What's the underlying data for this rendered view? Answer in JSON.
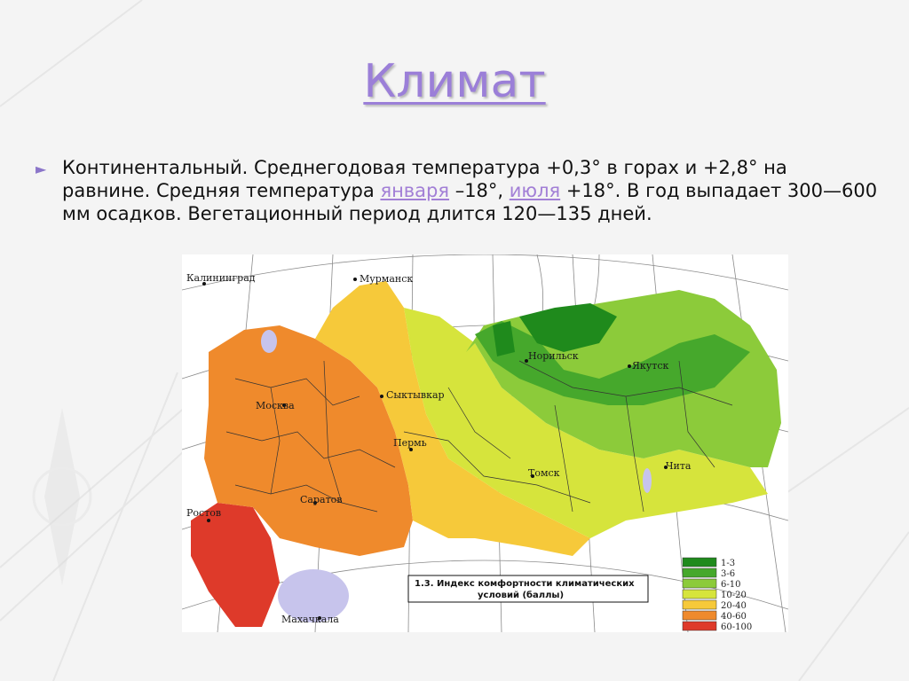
{
  "slide": {
    "title": "Климат",
    "bullet": {
      "t1": "Континентальный. Среднегодовая температура +0,3° в горах и +2,8° на равнине. Средняя температура ",
      "link1": "января",
      "t2": " –18°, ",
      "link2": "июля",
      "t3": " +18°. В год выпадает 300—600 мм осадков. Вегетационный период длится 120—135 дней."
    }
  },
  "map": {
    "cities": [
      {
        "name": "Калининград"
      },
      {
        "name": "Мурманск"
      },
      {
        "name": "Москва"
      },
      {
        "name": "Сыктывкар"
      },
      {
        "name": "Пермь"
      },
      {
        "name": "Саратов"
      },
      {
        "name": "Ростов"
      },
      {
        "name": "Махачкала"
      },
      {
        "name": "Норильск"
      },
      {
        "name": "Якутск"
      },
      {
        "name": "Томск"
      },
      {
        "name": "Чита"
      }
    ],
    "caption_line1": "1.3. Индекс комфортности климатических",
    "caption_line2": "условий  (баллы)",
    "legend": [
      {
        "label": "1-3",
        "color": "#1f8a1c"
      },
      {
        "label": "3-6",
        "color": "#46a82c"
      },
      {
        "label": "6-10",
        "color": "#8ccb3a"
      },
      {
        "label": "10-20",
        "color": "#d6e43c"
      },
      {
        "label": "20-40",
        "color": "#f6c93a"
      },
      {
        "label": "40-60",
        "color": "#ef8a2c"
      },
      {
        "label": "60-100",
        "color": "#de3a2a"
      }
    ],
    "colors": {
      "water": "#c7c4ec",
      "ocean": "#ffffff",
      "grid": "#8a8a8a"
    }
  }
}
